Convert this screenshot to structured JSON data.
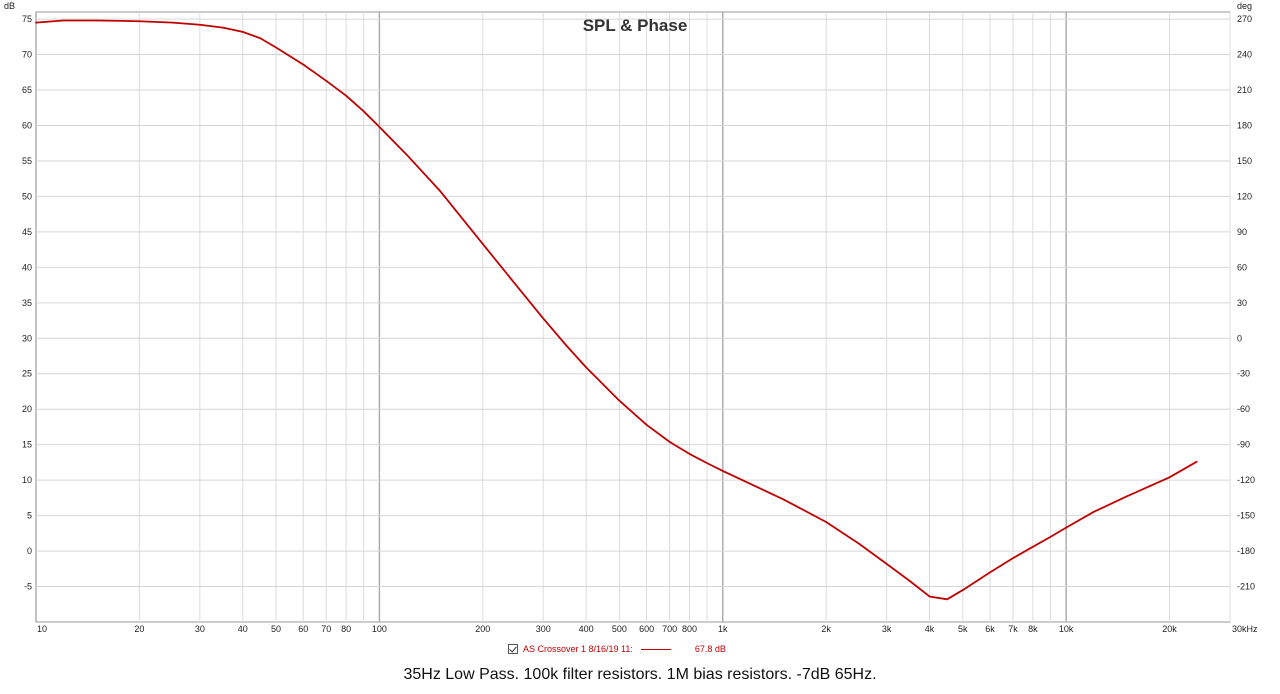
{
  "chart_data": {
    "type": "line",
    "title": "SPL & Phase",
    "caption": "35Hz Low Pass. 100k filter resistors. 1M bias resistors. -7dB 65Hz.",
    "x_scale": "log",
    "xlim": [
      10,
      30000
    ],
    "x_unit_label": "30kHz",
    "x_tick_labels": [
      {
        "value": 10,
        "label": "10"
      },
      {
        "value": 20,
        "label": "20"
      },
      {
        "value": 30,
        "label": "30"
      },
      {
        "value": 40,
        "label": "40"
      },
      {
        "value": 50,
        "label": "50"
      },
      {
        "value": 60,
        "label": "60"
      },
      {
        "value": 70,
        "label": "70"
      },
      {
        "value": 80,
        "label": "80"
      },
      {
        "value": 100,
        "label": "100"
      },
      {
        "value": 200,
        "label": "200"
      },
      {
        "value": 300,
        "label": "300"
      },
      {
        "value": 400,
        "label": "400"
      },
      {
        "value": 500,
        "label": "500"
      },
      {
        "value": 600,
        "label": "600"
      },
      {
        "value": 700,
        "label": "700"
      },
      {
        "value": 800,
        "label": "800"
      },
      {
        "value": 1000,
        "label": "1k"
      },
      {
        "value": 2000,
        "label": "2k"
      },
      {
        "value": 3000,
        "label": "3k"
      },
      {
        "value": 4000,
        "label": "4k"
      },
      {
        "value": 5000,
        "label": "5k"
      },
      {
        "value": 6000,
        "label": "6k"
      },
      {
        "value": 7000,
        "label": "7k"
      },
      {
        "value": 8000,
        "label": "8k"
      },
      {
        "value": 10000,
        "label": "10k"
      },
      {
        "value": 20000,
        "label": "20k"
      }
    ],
    "y_left": {
      "unit": "dB",
      "lim": [
        -10,
        76
      ],
      "ticks": [
        75,
        70,
        65,
        60,
        55,
        50,
        45,
        40,
        35,
        30,
        25,
        20,
        15,
        10,
        5,
        0,
        -5
      ]
    },
    "y_right": {
      "unit": "deg",
      "lim": [
        -240,
        276
      ],
      "ticks": [
        270,
        240,
        210,
        180,
        150,
        120,
        90,
        60,
        30,
        0,
        -30,
        -60,
        -90,
        -120,
        -150,
        -180,
        -210
      ]
    },
    "grid": true,
    "legend_position": "bottom-center",
    "series": [
      {
        "name": "AS Crossover 1 8/16/19 11:",
        "legend_value": "67.8 dB",
        "color": "#c00000",
        "x": [
          10,
          12,
          15,
          20,
          25,
          30,
          35,
          40,
          45,
          50,
          60,
          70,
          80,
          90,
          100,
          120,
          150,
          200,
          250,
          300,
          350,
          400,
          500,
          600,
          700,
          800,
          900,
          1000,
          1200,
          1500,
          2000,
          2500,
          3000,
          3500,
          4000,
          4500,
          5000,
          6000,
          7000,
          8000,
          9000,
          10000,
          12000,
          15000,
          20000,
          24000
        ],
        "y": [
          74.5,
          74.8,
          74.8,
          74.7,
          74.5,
          74.2,
          73.8,
          73.2,
          72.3,
          71.0,
          68.6,
          66.3,
          64.2,
          62.0,
          59.8,
          55.9,
          50.8,
          43.3,
          37.5,
          32.8,
          29.0,
          25.9,
          21.2,
          17.8,
          15.4,
          13.7,
          12.4,
          11.3,
          9.5,
          7.3,
          4.1,
          1.0,
          -1.8,
          -4.2,
          -6.4,
          -6.8,
          -5.5,
          -3.0,
          -1.0,
          0.6,
          2.0,
          3.3,
          5.5,
          7.7,
          10.4,
          12.6
        ]
      }
    ]
  }
}
